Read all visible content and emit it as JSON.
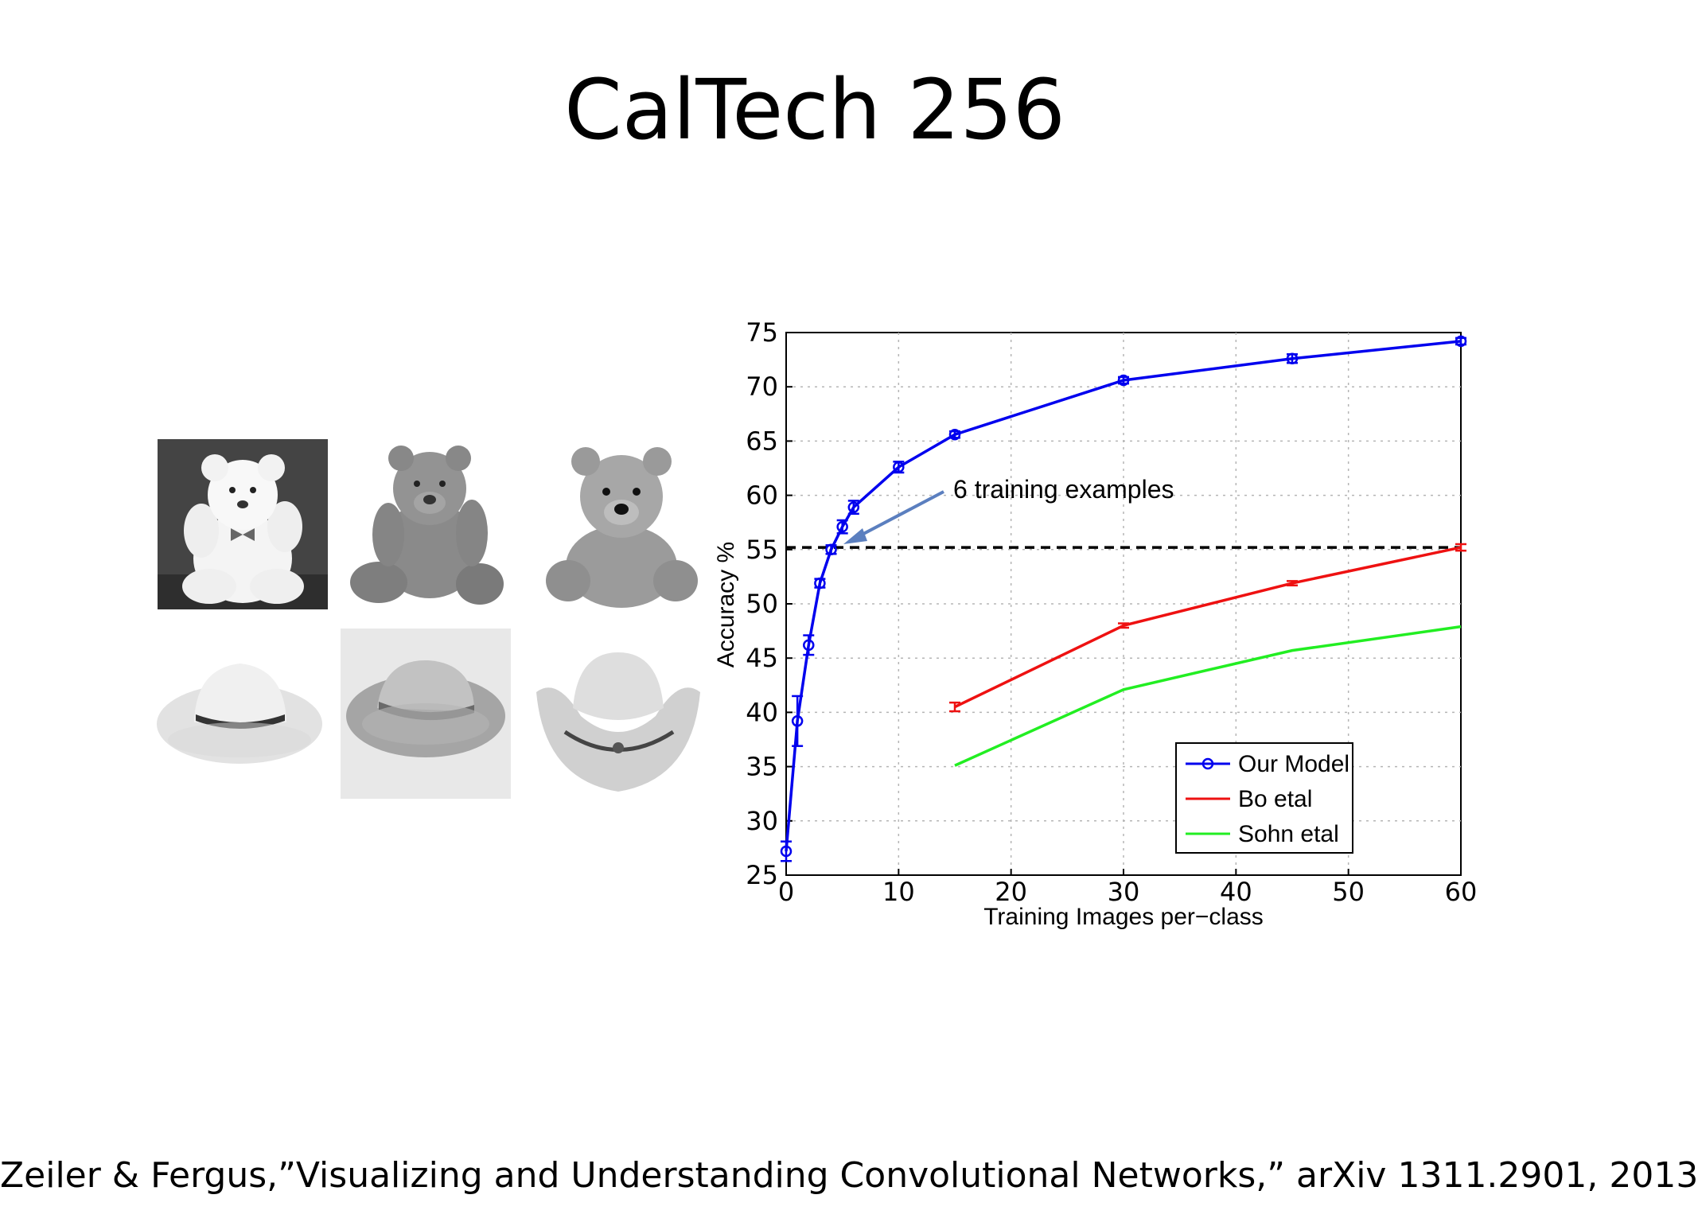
{
  "slide": {
    "title": "CalTech 256",
    "citation": "Zeiler & Fergus,”Visualizing and Understanding Convolutional Networks,” arXiv 1311.2901, 2013"
  },
  "images": [
    {
      "icon": "white-teddy-bear-photo"
    },
    {
      "icon": "gray-teddy-bear-photo"
    },
    {
      "icon": "fuzzy-teddy-bear-photo"
    },
    {
      "icon": "white-cowboy-hat-photo"
    },
    {
      "icon": "straw-cowboy-hat-photo"
    },
    {
      "icon": "gray-cowboy-hat-photo"
    }
  ],
  "colors": {
    "our_model": "#0000ee",
    "bo": "#ee1111",
    "sohn": "#22ee22",
    "arrow": "#5b7fbf"
  },
  "chart_data": {
    "type": "line",
    "xlabel": "Training Images per−class",
    "ylabel": "Accuracy %",
    "xlim": [
      0,
      60
    ],
    "ylim": [
      25,
      75
    ],
    "x_ticks": [
      "0",
      "10",
      "20",
      "30",
      "40",
      "50",
      "60"
    ],
    "y_ticks": [
      "25",
      "30",
      "35",
      "40",
      "45",
      "50",
      "55",
      "60",
      "65",
      "70",
      "75"
    ],
    "grid": true,
    "legend_position": "bottom-right",
    "series": [
      {
        "name": "Our Model",
        "x": [
          0,
          1,
          2,
          3,
          4,
          5,
          6,
          10,
          15,
          30,
          45,
          60
        ],
        "y": [
          27.2,
          39.2,
          46.2,
          51.9,
          55.0,
          57.1,
          58.9,
          62.6,
          65.6,
          70.6,
          72.6,
          74.2
        ],
        "err": [
          0.9,
          2.3,
          0.9,
          0.4,
          0.4,
          0.6,
          0.6,
          0.5,
          0.3,
          0.3,
          0.4,
          0.3
        ]
      },
      {
        "name": "Bo etal",
        "x": [
          15,
          30,
          45,
          60
        ],
        "y": [
          40.5,
          48.0,
          51.9,
          55.2
        ],
        "err": [
          0.4,
          0.2,
          0.2,
          0.3
        ]
      },
      {
        "name": "Sohn etal",
        "x": [
          15,
          30,
          45,
          60
        ],
        "y": [
          35.1,
          42.1,
          45.7,
          47.9
        ]
      }
    ],
    "reference_line": {
      "y": 55.2
    },
    "annotations": [
      {
        "text": "6 training examples",
        "x": 6,
        "y": 55.2
      }
    ]
  }
}
